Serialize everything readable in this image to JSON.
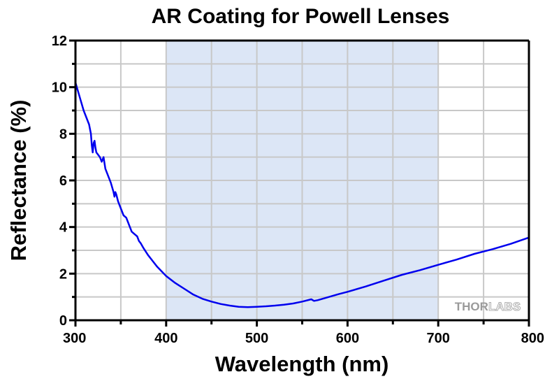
{
  "chart_data": {
    "type": "line",
    "title": "AR Coating for Powell Lenses",
    "xlabel": "Wavelength (nm)",
    "ylabel": "Reflectance (%)",
    "xlim": [
      300,
      800
    ],
    "ylim": [
      0,
      12
    ],
    "x_ticks": [
      "300",
      "400",
      "500",
      "600",
      "700",
      "800"
    ],
    "y_ticks": [
      "0",
      "2",
      "4",
      "6",
      "8",
      "10",
      "12"
    ],
    "x_tick_values": [
      300,
      400,
      500,
      600,
      700,
      800
    ],
    "y_tick_values": [
      0,
      2,
      4,
      6,
      8,
      10,
      12
    ],
    "x_minor_step": 50,
    "y_minor_step": 1,
    "grid": true,
    "shaded_region": {
      "x": [
        400,
        700
      ],
      "color": "#dce6f6"
    },
    "watermark": {
      "part1": "THOR",
      "part2": "LABS"
    },
    "series": [
      {
        "name": "Reflectance",
        "color": "#0000ee",
        "x": [
          300,
          303,
          306,
          309,
          312,
          315,
          317,
          318,
          319,
          320,
          321,
          322,
          323,
          325,
          327,
          329,
          331,
          333,
          336,
          339,
          342,
          343,
          344,
          345,
          347,
          350,
          353,
          356,
          358,
          360,
          362,
          365,
          368,
          370,
          372,
          375,
          380,
          385,
          390,
          395,
          400,
          410,
          420,
          430,
          440,
          450,
          460,
          470,
          480,
          490,
          500,
          510,
          520,
          530,
          540,
          550,
          560,
          563,
          567,
          575,
          590,
          600,
          620,
          640,
          660,
          680,
          700,
          720,
          740,
          760,
          780,
          800
        ],
        "y": [
          10.2,
          9.8,
          9.4,
          9.0,
          8.7,
          8.4,
          8.0,
          7.5,
          7.2,
          7.6,
          7.7,
          7.4,
          7.2,
          7.1,
          7.0,
          6.8,
          7.0,
          6.5,
          6.2,
          5.9,
          5.5,
          5.3,
          5.5,
          5.4,
          5.1,
          4.8,
          4.5,
          4.4,
          4.2,
          4.0,
          3.8,
          3.7,
          3.6,
          3.4,
          3.3,
          3.1,
          2.8,
          2.55,
          2.3,
          2.1,
          1.9,
          1.6,
          1.35,
          1.1,
          0.92,
          0.8,
          0.7,
          0.63,
          0.58,
          0.56,
          0.58,
          0.6,
          0.63,
          0.67,
          0.72,
          0.8,
          0.9,
          0.83,
          0.86,
          0.95,
          1.12,
          1.22,
          1.45,
          1.7,
          1.95,
          2.15,
          2.38,
          2.6,
          2.85,
          3.05,
          3.28,
          3.55
        ]
      }
    ]
  }
}
